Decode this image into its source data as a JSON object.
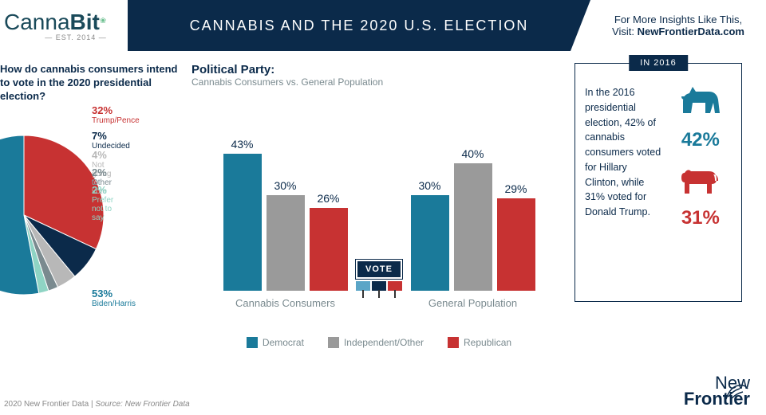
{
  "header": {
    "logo_pre": "Canna",
    "logo_bold": "Bit",
    "est": "— EST. 2014 —",
    "title": "CANNABIS AND THE 2020 U.S. ELECTION",
    "insights_line1": "For More Insights Like This,",
    "insights_line2_pre": "Visit: ",
    "insights_line2_bold": "NewFrontierData.com"
  },
  "pie": {
    "question": "How do cannabis consumers intend to vote in the 2020 presidential election?",
    "slices": [
      {
        "label": "Trump/Pence",
        "pct": "32%",
        "value": 32,
        "color": "#c73232"
      },
      {
        "label": "Undecided",
        "pct": "7%",
        "value": 7,
        "color": "#0b2a4a"
      },
      {
        "label": "Not going to vote",
        "pct": "4%",
        "value": 4,
        "color": "#b8b8b8"
      },
      {
        "label": "Other",
        "pct": "2%",
        "value": 2,
        "color": "#7a8a8f"
      },
      {
        "label": "Prefer not to say",
        "pct": "2%",
        "value": 2,
        "color": "#8fd4c4"
      },
      {
        "label": "Biden/Harris",
        "pct": "53%",
        "value": 53,
        "color": "#1a7a9a"
      }
    ]
  },
  "bars": {
    "title": "Political Party:",
    "subtitle": "Cannabis Consumers vs. General Population",
    "max": 50,
    "groups": [
      {
        "name": "Cannabis Consumers",
        "bars": [
          {
            "pct": "43%",
            "value": 43,
            "color": "#1a7a9a"
          },
          {
            "pct": "30%",
            "value": 30,
            "color": "#9a9a9a"
          },
          {
            "pct": "26%",
            "value": 26,
            "color": "#c73232"
          }
        ]
      },
      {
        "name": "General Population",
        "bars": [
          {
            "pct": "30%",
            "value": 30,
            "color": "#1a7a9a"
          },
          {
            "pct": "40%",
            "value": 40,
            "color": "#9a9a9a"
          },
          {
            "pct": "29%",
            "value": 29,
            "color": "#c73232"
          }
        ]
      }
    ],
    "vote_label": "VOTE",
    "legend": [
      {
        "label": "Democrat",
        "color": "#1a7a9a"
      },
      {
        "label": "Independent/Other",
        "color": "#9a9a9a"
      },
      {
        "label": "Republican",
        "color": "#c73232"
      }
    ],
    "sign_colors": [
      "#5aa5c7",
      "#0b2a4a",
      "#c73232"
    ]
  },
  "sidebox": {
    "header": "IN 2016",
    "text": "In the 2016 presidential election, 42% of cannabis consumers voted for Hillary Clinton, while 31% voted for Donald Trump.",
    "dem_pct": "42%",
    "dem_color": "#1a7a9a",
    "rep_pct": "31%",
    "rep_color": "#c73232"
  },
  "footer": {
    "copyright": "2020  New Frontier Data | ",
    "source": "Source: New Frontier Data"
  },
  "nflogo": {
    "pre": "New",
    "bold": "Frontier"
  }
}
